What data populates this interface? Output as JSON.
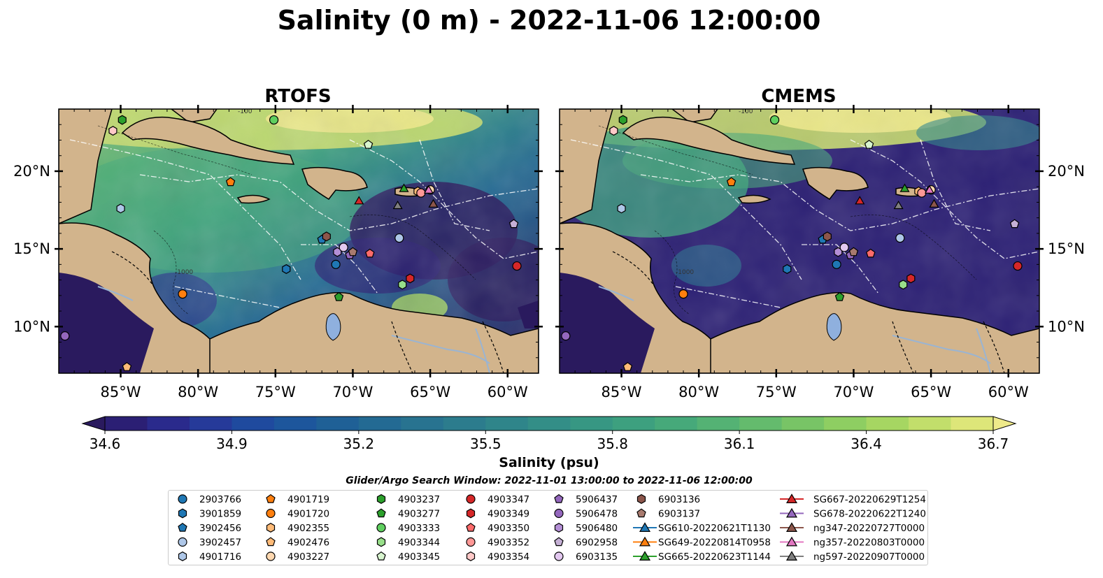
{
  "figure": {
    "title": "Salinity (0 m) - 2022-11-06 12:00:00",
    "panels": [
      {
        "id": "left",
        "title": "RTOFS"
      },
      {
        "id": "right",
        "title": "CMEMS"
      }
    ],
    "map": {
      "lon_range": [
        -89,
        -58
      ],
      "lat_range": [
        7,
        24
      ],
      "lon_ticks": [
        -85,
        -80,
        -75,
        -70,
        -65,
        -60
      ],
      "lon_tick_labels": [
        "85°W",
        "80°W",
        "75°W",
        "70°W",
        "65°W",
        "60°W"
      ],
      "lat_ticks": [
        10,
        15,
        20
      ],
      "lat_tick_labels": [
        "10°N",
        "15°N",
        "20°N"
      ],
      "land_color": "#d2b48c",
      "lake_color": "#8fb0de",
      "river_color": "#9ab4d2",
      "contour_labels": [
        "-100",
        "-1000"
      ],
      "eez_color": "#ffffff"
    },
    "colorbar": {
      "min": 34.6,
      "max": 36.7,
      "step": 0.1,
      "ticks": [
        34.6,
        34.9,
        35.2,
        35.5,
        35.8,
        36.1,
        36.4,
        36.7
      ],
      "tick_labels": [
        "34.6",
        "34.9",
        "35.2",
        "35.5",
        "35.8",
        "36.1",
        "36.4",
        "36.7"
      ],
      "label": "Salinity (psu)",
      "colors": [
        "#2a1a5e",
        "#2b1f74",
        "#2a2a8c",
        "#263a99",
        "#1f4a9e",
        "#1d569c",
        "#1f6096",
        "#236a93",
        "#287390",
        "#2c7c8d",
        "#2f858a",
        "#338e87",
        "#379783",
        "#3da07f",
        "#46a97a",
        "#54b274",
        "#64bb6d",
        "#78c466",
        "#8ece62",
        "#a6d662",
        "#c2de6b",
        "#dde679",
        "#efea8a"
      ]
    },
    "search_window": "Glider/Argo Search Window: 2022-11-01 13:00:00 to 2022-11-06 12:00:00",
    "legend": [
      {
        "label": "2903766",
        "shape": "circle",
        "color": "#1f77b4"
      },
      {
        "label": "3901859",
        "shape": "hexagon",
        "color": "#1f77b4"
      },
      {
        "label": "3902456",
        "shape": "pentagon",
        "color": "#1f77b4"
      },
      {
        "label": "3902457",
        "shape": "circle",
        "color": "#aec7e8"
      },
      {
        "label": "4901716",
        "shape": "hexagon",
        "color": "#aec7e8"
      },
      {
        "label": "4901719",
        "shape": "pentagon",
        "color": "#ff7f0e"
      },
      {
        "label": "4901720",
        "shape": "circle",
        "color": "#ff7f0e"
      },
      {
        "label": "4902355",
        "shape": "hexagon",
        "color": "#ffbb78"
      },
      {
        "label": "4902476",
        "shape": "pentagon",
        "color": "#ffbb78"
      },
      {
        "label": "4903227",
        "shape": "circle",
        "color": "#ffd8b0"
      },
      {
        "label": "4903237",
        "shape": "hexagon",
        "color": "#2ca02c"
      },
      {
        "label": "4903277",
        "shape": "pentagon",
        "color": "#2ca02c"
      },
      {
        "label": "4903333",
        "shape": "circle",
        "color": "#5fcf5f"
      },
      {
        "label": "4903344",
        "shape": "hexagon",
        "color": "#98df8a"
      },
      {
        "label": "4903345",
        "shape": "pentagon",
        "color": "#d8f5cf"
      },
      {
        "label": "4903347",
        "shape": "circle",
        "color": "#d62728"
      },
      {
        "label": "4903349",
        "shape": "hexagon",
        "color": "#d62728"
      },
      {
        "label": "4903350",
        "shape": "pentagon",
        "color": "#ff6b6b"
      },
      {
        "label": "4903352",
        "shape": "circle",
        "color": "#ff9896"
      },
      {
        "label": "4903354",
        "shape": "hexagon",
        "color": "#ffc9c8"
      },
      {
        "label": "5906437",
        "shape": "pentagon",
        "color": "#9467bd"
      },
      {
        "label": "5906478",
        "shape": "circle",
        "color": "#9467bd"
      },
      {
        "label": "5906480",
        "shape": "hexagon",
        "color": "#b48fd6"
      },
      {
        "label": "6902958",
        "shape": "pentagon",
        "color": "#c5b0d5"
      },
      {
        "label": "6903135",
        "shape": "circle",
        "color": "#e3c8f0"
      },
      {
        "label": "6903136",
        "shape": "hexagon",
        "color": "#8c564b"
      },
      {
        "label": "6903137",
        "shape": "pentagon",
        "color": "#a87a6e"
      },
      {
        "label": "SG610-20220621T1130",
        "shape": "triangle-line",
        "color": "#1f77b4"
      },
      {
        "label": "SG649-20220814T0958",
        "shape": "triangle-line",
        "color": "#ff7f0e"
      },
      {
        "label": "SG665-20220623T1144",
        "shape": "triangle-line",
        "color": "#2ca02c"
      },
      {
        "label": "SG667-20220629T1254",
        "shape": "triangle-line",
        "color": "#d62728"
      },
      {
        "label": "SG678-20220622T1240",
        "shape": "triangle-line",
        "color": "#9467bd"
      },
      {
        "label": "ng347-20220727T0000",
        "shape": "triangle-line",
        "color": "#8c564b"
      },
      {
        "label": "ng357-20220803T0000",
        "shape": "triangle-line",
        "color": "#e377c2"
      },
      {
        "label": "ng597-20220907T0000",
        "shape": "triangle-line",
        "color": "#7f7f7f"
      }
    ],
    "observations": [
      {
        "id": "2903766",
        "lon": -71.1,
        "lat": 14.0
      },
      {
        "id": "3901859",
        "lon": -74.3,
        "lat": 13.7
      },
      {
        "id": "3902456",
        "lon": -72.0,
        "lat": 15.6
      },
      {
        "id": "3902457",
        "lon": -67.0,
        "lat": 15.7
      },
      {
        "id": "4901716",
        "lon": -85.0,
        "lat": 17.6
      },
      {
        "id": "4901719",
        "lon": -77.9,
        "lat": 19.3
      },
      {
        "id": "4901720",
        "lon": -81.0,
        "lat": 12.1
      },
      {
        "id": "4902355",
        "lon": -65.8,
        "lat": 18.7
      },
      {
        "id": "4902476",
        "lon": -84.6,
        "lat": 7.4
      },
      {
        "id": "4903227",
        "lon": -65.0,
        "lat": 18.8
      },
      {
        "id": "4903237",
        "lon": -84.9,
        "lat": 23.3
      },
      {
        "id": "4903277",
        "lon": -70.9,
        "lat": 11.9
      },
      {
        "id": "4903333",
        "lon": -75.1,
        "lat": 23.3
      },
      {
        "id": "4903344",
        "lon": -66.8,
        "lat": 12.7
      },
      {
        "id": "4903345",
        "lon": -69.0,
        "lat": 21.7
      },
      {
        "id": "4903347",
        "lon": -59.4,
        "lat": 13.9
      },
      {
        "id": "4903349",
        "lon": -66.3,
        "lat": 13.1
      },
      {
        "id": "4903350",
        "lon": -68.9,
        "lat": 14.7
      },
      {
        "id": "4903352",
        "lon": -65.6,
        "lat": 18.6
      },
      {
        "id": "4903354",
        "lon": -85.5,
        "lat": 22.6
      },
      {
        "id": "5906437",
        "lon": -70.2,
        "lat": 14.6
      },
      {
        "id": "5906478",
        "lon": -88.6,
        "lat": 9.4
      },
      {
        "id": "5906480",
        "lon": -71.0,
        "lat": 14.8
      },
      {
        "id": "6902958",
        "lon": -59.6,
        "lat": 16.6
      },
      {
        "id": "6903135",
        "lon": -70.6,
        "lat": 15.1
      },
      {
        "id": "6903136",
        "lon": -71.7,
        "lat": 15.8
      },
      {
        "id": "6903137",
        "lon": -70.0,
        "lat": 14.8
      },
      {
        "id": "SG665-20220623T1144",
        "lon": -66.7,
        "lat": 18.9
      },
      {
        "id": "SG667-20220629T1254",
        "lon": -69.6,
        "lat": 18.1
      },
      {
        "id": "ng347-20220727T0000",
        "lon": -64.8,
        "lat": 17.9
      },
      {
        "id": "ng357-20220803T0000",
        "lon": -65.1,
        "lat": 18.8
      },
      {
        "id": "ng597-20220907T0000",
        "lon": -67.1,
        "lat": 17.8
      }
    ]
  }
}
